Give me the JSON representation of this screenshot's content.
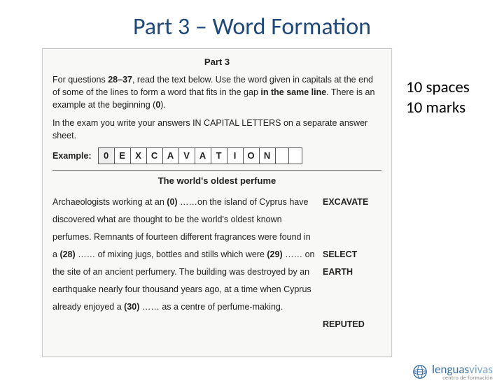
{
  "title": "Part 3 – Word Formation",
  "scan": {
    "part_label": "Part 3",
    "instr1_a": "For questions ",
    "instr1_b": "28–37",
    "instr1_c": ", read the text below. Use the word given in capitals at the end of some of the lines to form a word that fits in the gap ",
    "instr1_d": "in the same line",
    "instr1_e": ". There is an example at the beginning (",
    "instr1_f": "0",
    "instr1_g": ").",
    "instr2": "In the exam you write your answers IN CAPITAL LETTERS on a separate answer sheet.",
    "example_label": "Example:",
    "example_boxes": [
      "0",
      "E",
      "X",
      "C",
      "A",
      "V",
      "A",
      "T",
      "I",
      "O",
      "N"
    ],
    "passage_title": "The world's oldest perfume",
    "passage_html": "Archaeologists working at an <strong class='inb'>(0)</strong> ……on the island of Cyprus have discovered what are thought to be the world's oldest known perfumes. Remnants of fourteen different fragrances were found in a <strong class='inb'>(28)</strong> …… of mixing jugs, bottles and stills which were <strong class='inb'>(29)</strong> …… on the site of an ancient perfumery. The building was destroyed by an earthquake nearly four thousand years ago, at a time when Cyprus already enjoyed a <strong class='inb'>(30)</strong> …… as a centre of perfume-making.",
    "stems": [
      "EXCAVATE",
      "",
      "",
      "SELECT",
      "EARTH",
      "",
      "",
      "REPUTED",
      ""
    ]
  },
  "side": {
    "line1": "10 spaces",
    "line2": "10 marks"
  },
  "logo": {
    "brand_a": "lenguas",
    "brand_b": "vivas",
    "sub": "centro de formación"
  },
  "colors": {
    "title": "#1f497d",
    "brand_a": "#3a6fa3",
    "brand_b": "#7aa7cf"
  }
}
